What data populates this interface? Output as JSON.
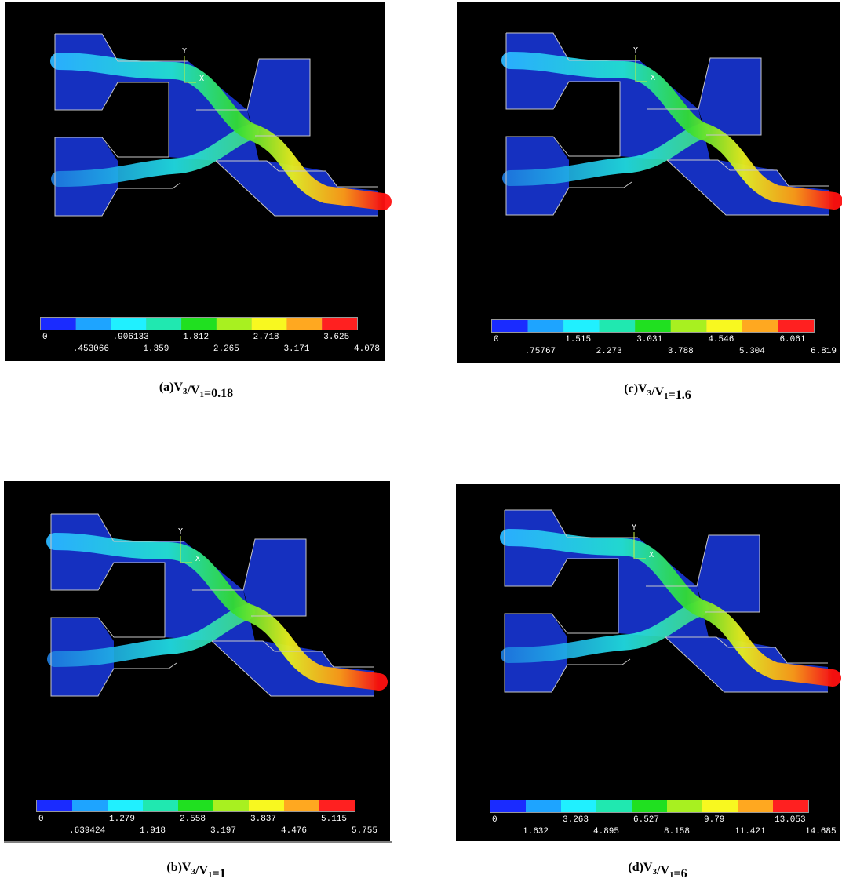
{
  "panels": [
    {
      "axis_y": "Y",
      "axis_x": "X",
      "colorbar": {
        "upper_labels": [
          "0",
          ".906133",
          "1.812",
          "2.718",
          "3.625"
        ],
        "lower_labels": [
          ".453066",
          "1.359",
          "2.265",
          "3.171",
          "4.078"
        ]
      },
      "caption": {
        "label": "(a)",
        "numerator": "V",
        "numerator_sub": "3",
        "slash": "/",
        "denominator": "V",
        "denominator_sub": "1",
        "equals": "=",
        "ratio": "0.18"
      }
    },
    {
      "axis_y": "Y",
      "axis_x": "X",
      "colorbar": {
        "upper_labels": [
          "0",
          "1.515",
          "3.031",
          "4.546",
          "6.061"
        ],
        "lower_labels": [
          ".75767",
          "2.273",
          "3.788",
          "5.304",
          "6.819"
        ]
      },
      "caption": {
        "label": "(c)",
        "numerator": "V",
        "numerator_sub": "3",
        "slash": "/",
        "denominator": "V",
        "denominator_sub": "1",
        "equals": "=",
        "ratio": "1.6"
      }
    },
    {
      "axis_y": "Y",
      "axis_x": "X",
      "colorbar": {
        "upper_labels": [
          "0",
          "1.279",
          "2.558",
          "3.837",
          "5.115"
        ],
        "lower_labels": [
          ".639424",
          "1.918",
          "3.197",
          "4.476",
          "5.755"
        ]
      },
      "caption": {
        "label": "(b)",
        "numerator": "V",
        "numerator_sub": "3",
        "slash": "/",
        "denominator": "V",
        "denominator_sub": "1",
        "equals": "=",
        "ratio": "1"
      }
    },
    {
      "axis_y": "Y",
      "axis_x": "X",
      "colorbar": {
        "upper_labels": [
          "0",
          "3.263",
          "6.527",
          "9.79",
          "13.053"
        ],
        "lower_labels": [
          "1.632",
          "4.895",
          "8.158",
          "11.421",
          "14.685"
        ]
      },
      "caption": {
        "label": "(d)",
        "numerator": "V",
        "numerator_sub": "3",
        "slash": "/",
        "denominator": "V",
        "denominator_sub": "1",
        "equals": "=",
        "ratio": "6"
      }
    }
  ]
}
